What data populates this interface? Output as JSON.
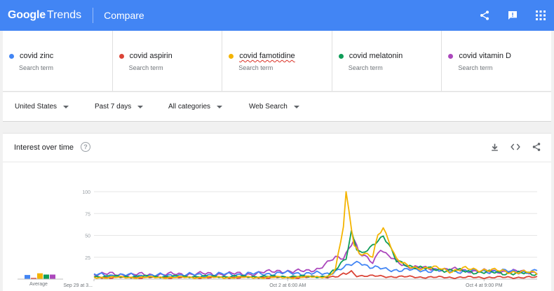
{
  "header": {
    "logo_google": "Google",
    "logo_trends": "Trends",
    "title": "Compare",
    "icons": [
      "share-icon",
      "feedback-icon",
      "apps-grid-icon"
    ]
  },
  "terms": [
    {
      "name": "covid zinc",
      "sub": "Search term",
      "color": "#4285f4",
      "spell": false
    },
    {
      "name": "covid aspirin",
      "sub": "Search term",
      "color": "#db4437",
      "spell": false
    },
    {
      "name": "covid famotidine",
      "sub": "Search term",
      "color": "#f4b400",
      "spell": true
    },
    {
      "name": "covid melatonin",
      "sub": "Search term",
      "color": "#0f9d58",
      "spell": false
    },
    {
      "name": "covid vitamin D",
      "sub": "Search term",
      "color": "#ab47bc",
      "spell": false
    }
  ],
  "filters": {
    "region": "United States",
    "time": "Past 7 days",
    "category": "All categories",
    "search_type": "Web Search"
  },
  "card": {
    "title": "Interest over time",
    "help": "?",
    "icons": [
      "download-icon",
      "embed-code-icon",
      "share-icon"
    ],
    "average_label": "Average"
  },
  "chart_data": {
    "type": "line",
    "y_ticks": [
      "100",
      "75",
      "50",
      "25"
    ],
    "ylim": [
      0,
      100
    ],
    "x_tick_labels": [
      "Sep 29 at 3...",
      "Oct 2 at 6:00 AM",
      "Oct 4 at 9:00 PM"
    ],
    "x_tick_positions": [
      0,
      73,
      147
    ],
    "n_points": 168,
    "averages": [
      9,
      2,
      13,
      10,
      10
    ],
    "series": [
      {
        "name": "covid zinc",
        "color": "#4285f4",
        "keys": [
          [
            0,
            5
          ],
          [
            20,
            4
          ],
          [
            40,
            5
          ],
          [
            60,
            6
          ],
          [
            75,
            7
          ],
          [
            88,
            6
          ],
          [
            93,
            12
          ],
          [
            96,
            15
          ],
          [
            100,
            20
          ],
          [
            104,
            14
          ],
          [
            110,
            11
          ],
          [
            125,
            10
          ],
          [
            140,
            9
          ],
          [
            155,
            9
          ],
          [
            165,
            8
          ],
          [
            167,
            10
          ]
        ]
      },
      {
        "name": "covid aspirin",
        "color": "#db4437",
        "keys": [
          [
            0,
            2
          ],
          [
            40,
            2
          ],
          [
            75,
            2
          ],
          [
            92,
            3
          ],
          [
            95,
            6
          ],
          [
            97,
            8
          ],
          [
            100,
            4
          ],
          [
            110,
            3
          ],
          [
            130,
            2
          ],
          [
            167,
            2
          ]
        ]
      },
      {
        "name": "covid famotidine",
        "color": "#f4b400",
        "keys": [
          [
            0,
            2
          ],
          [
            75,
            2
          ],
          [
            88,
            3
          ],
          [
            91,
            10
          ],
          [
            94,
            60
          ],
          [
            95,
            100
          ],
          [
            96,
            80
          ],
          [
            98,
            40
          ],
          [
            100,
            30
          ],
          [
            102,
            28
          ],
          [
            105,
            25
          ],
          [
            107,
            50
          ],
          [
            109,
            60
          ],
          [
            111,
            45
          ],
          [
            114,
            22
          ],
          [
            118,
            15
          ],
          [
            125,
            12
          ],
          [
            130,
            13
          ],
          [
            135,
            9
          ],
          [
            140,
            12
          ],
          [
            150,
            10
          ],
          [
            160,
            8
          ],
          [
            167,
            7
          ]
        ]
      },
      {
        "name": "covid melatonin",
        "color": "#0f9d58",
        "keys": [
          [
            0,
            3
          ],
          [
            75,
            3
          ],
          [
            88,
            3
          ],
          [
            91,
            10
          ],
          [
            95,
            25
          ],
          [
            97,
            55
          ],
          [
            99,
            35
          ],
          [
            101,
            28
          ],
          [
            104,
            35
          ],
          [
            107,
            45
          ],
          [
            109,
            50
          ],
          [
            111,
            40
          ],
          [
            114,
            20
          ],
          [
            118,
            16
          ],
          [
            125,
            12
          ],
          [
            135,
            10
          ],
          [
            145,
            8
          ],
          [
            155,
            7
          ],
          [
            167,
            6
          ]
        ]
      },
      {
        "name": "covid vitamin D",
        "color": "#ab47bc",
        "keys": [
          [
            0,
            6
          ],
          [
            20,
            5
          ],
          [
            40,
            6
          ],
          [
            60,
            6
          ],
          [
            70,
            10
          ],
          [
            75,
            8
          ],
          [
            85,
            12
          ],
          [
            88,
            18
          ],
          [
            91,
            25
          ],
          [
            94,
            25
          ],
          [
            96,
            35
          ],
          [
            98,
            45
          ],
          [
            100,
            28
          ],
          [
            102,
            26
          ],
          [
            105,
            20
          ],
          [
            108,
            35
          ],
          [
            110,
            28
          ],
          [
            114,
            20
          ],
          [
            118,
            15
          ],
          [
            125,
            12
          ],
          [
            135,
            11
          ],
          [
            145,
            9
          ],
          [
            155,
            9
          ],
          [
            167,
            8
          ]
        ]
      }
    ]
  }
}
